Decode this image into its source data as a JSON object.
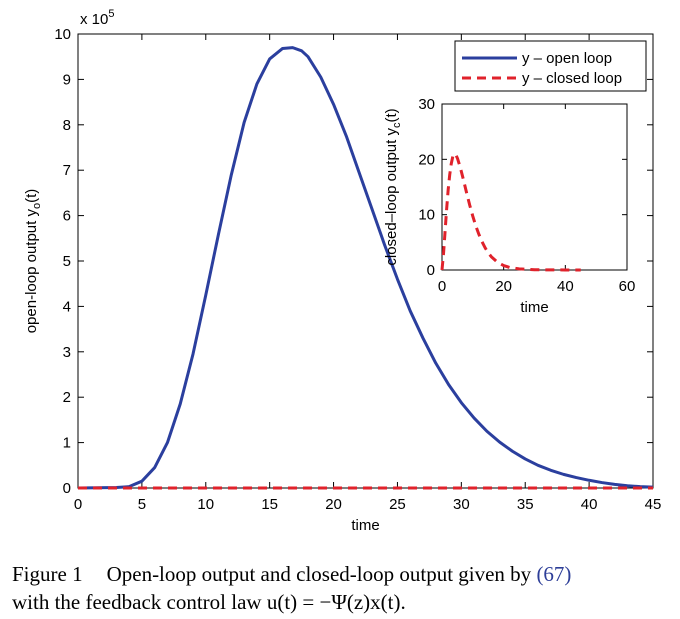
{
  "chart_data": [
    {
      "type": "line",
      "xlabel": "time",
      "ylabel": "open-loop output y",
      "ylabel_subscript": "o",
      "ylabel_suffix": "(t)",
      "xlim": [
        0,
        45
      ],
      "ylim": [
        0,
        10
      ],
      "y_multiplier": "x 10",
      "y_multiplier_exp": "5",
      "x_ticks": [
        0,
        5,
        10,
        15,
        20,
        25,
        30,
        35,
        40,
        45
      ],
      "y_ticks": [
        0,
        1,
        2,
        3,
        4,
        5,
        6,
        7,
        8,
        9,
        10
      ],
      "grid": false,
      "legend_position": "top-right",
      "legend": [
        "y – open loop",
        "y – closed loop"
      ],
      "series": [
        {
          "name": "y – open loop",
          "color": "#2b3f9e",
          "style": "solid",
          "x": [
            0,
            3,
            4,
            5,
            6,
            7,
            8,
            9,
            10,
            11,
            12,
            13,
            14,
            15,
            16,
            16.8,
            17.5,
            18,
            19,
            20,
            21,
            22,
            23,
            24,
            25,
            26,
            27,
            28,
            29,
            30,
            31,
            32,
            33,
            34,
            35,
            36,
            37,
            38,
            39,
            40,
            41,
            42,
            43,
            44,
            45
          ],
          "y": [
            0,
            0.01,
            0.03,
            0.15,
            0.45,
            1.0,
            1.85,
            2.95,
            4.25,
            5.6,
            6.9,
            8.05,
            8.9,
            9.45,
            9.68,
            9.7,
            9.63,
            9.5,
            9.05,
            8.45,
            7.75,
            6.95,
            6.15,
            5.35,
            4.6,
            3.9,
            3.3,
            2.75,
            2.28,
            1.88,
            1.54,
            1.25,
            1.01,
            0.81,
            0.64,
            0.5,
            0.39,
            0.3,
            0.23,
            0.17,
            0.12,
            0.08,
            0.05,
            0.03,
            0.02
          ]
        },
        {
          "name": "y – closed loop",
          "color": "#e0222b",
          "style": "dashed",
          "x": [
            0,
            45
          ],
          "y": [
            0,
            0
          ]
        }
      ]
    },
    {
      "type": "line",
      "inset": true,
      "xlabel": "time",
      "ylabel": "closed–loop output y",
      "ylabel_subscript": "c",
      "ylabel_suffix": "(t)",
      "xlim": [
        0,
        60
      ],
      "ylim": [
        0,
        30
      ],
      "x_ticks": [
        0,
        20,
        40,
        60
      ],
      "y_ticks": [
        0,
        10,
        20,
        30
      ],
      "grid": false,
      "series": [
        {
          "color": "#e0222b",
          "style": "dashed",
          "x": [
            0,
            0.5,
            1,
            1.5,
            2,
            2.5,
            3,
            3.5,
            4,
            4.5,
            5,
            6,
            7,
            8,
            9,
            10,
            11,
            12,
            13,
            14,
            15,
            16,
            18,
            20,
            22,
            25,
            30,
            35,
            40,
            45
          ],
          "y": [
            0,
            3,
            7,
            11,
            14.5,
            17.2,
            19.2,
            20.5,
            21,
            20.8,
            20.2,
            18.4,
            16.2,
            13.9,
            11.7,
            9.7,
            7.9,
            6.4,
            5.1,
            4.0,
            3.1,
            2.4,
            1.4,
            0.8,
            0.45,
            0.2,
            0.05,
            0.02,
            0.01,
            0
          ]
        }
      ]
    }
  ],
  "caption": {
    "label": "Figure 1",
    "line1": "Open-loop output and closed-loop output given by ",
    "ref": "(67)",
    "line2": "with the feedback control law u(t) = −Ψ(z)x(t)."
  }
}
